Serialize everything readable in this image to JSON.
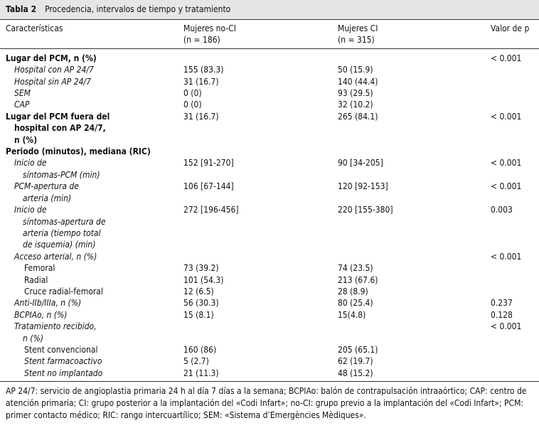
{
  "title": {
    "label": "Tabla 2",
    "text": "Procedencia, intervalos de tiempo y tratamiento"
  },
  "table": {
    "header": [
      [
        "Características"
      ],
      [
        "Mujeres no-CI",
        "(n = 186)"
      ],
      [
        "Mujeres CI",
        "(n = 315)"
      ],
      [
        "Valor de p"
      ]
    ],
    "rows": [
      [
        [
          "Lugar del PCM, n (%)"
        ],
        "",
        "",
        "< 0.001"
      ],
      [
        [
          "Hospital con AP 24/7"
        ],
        "155 (83.3)",
        "50 (15.9)",
        ""
      ],
      [
        [
          "Hospital sin AP 24/7"
        ],
        "31 (16.7)",
        "140 (44.4)",
        ""
      ],
      [
        [
          "SEM"
        ],
        "0 (0)",
        "93 (29.5)",
        ""
      ],
      [
        [
          "CAP"
        ],
        "0 (0)",
        "32 (10.2)",
        ""
      ],
      [
        [
          "Lugar del PCM fuera del",
          "hospital con AP 24/7,",
          "n (%)"
        ],
        "31 (16.7)",
        "265 (84.1)",
        "< 0.001"
      ],
      [
        [
          "Periodo (minutos), mediana (RIC)"
        ],
        "",
        "",
        ""
      ],
      [
        [
          "Inicio de",
          "síntomas-PCM (min)"
        ],
        "152 [91-270]",
        "90 [34-205]",
        "< 0.001"
      ],
      [
        [
          "PCM-apertura de",
          "arteria (min)"
        ],
        "106 [67-144]",
        "120 [92-153]",
        "< 0.001"
      ],
      [
        [
          "Inicio de",
          "síntomas-apertura de",
          "arteria (tiempo total",
          "de isquemia) (min)"
        ],
        "272 [196-456]",
        "220 [155-380]",
        "0.003"
      ],
      [
        [
          "Acceso arterial, n (%)"
        ],
        "",
        "",
        "< 0.001"
      ],
      [
        [
          "Femoral"
        ],
        "73 (39.2)",
        "74 (23.5)",
        ""
      ],
      [
        [
          "Radial"
        ],
        "101 (54.3)",
        "213 (67.6)",
        ""
      ],
      [
        [
          "Cruce radial-femoral"
        ],
        "12 (6.5)",
        "28 (8.9)",
        ""
      ],
      [
        [
          "Anti-IIb/IIIa, n (%)"
        ],
        "56 (30.3)",
        "80 (25.4)",
        "0.237"
      ],
      [
        [
          "BCPIAo, n (%)"
        ],
        "15 (8.1)",
        "15(4.8)",
        "0.128"
      ],
      [
        [
          "Tratamiento recibido,",
          "n (%)"
        ],
        "",
        "",
        "< 0.001"
      ],
      [
        [
          "Stent convencional"
        ],
        "160 (86)",
        "205 (65.1)",
        ""
      ],
      [
        [
          "Stent farmacoactivo"
        ],
        "5 (2.7)",
        "62 (19.7)",
        ""
      ],
      [
        [
          "Stent no implantado"
        ],
        "21 (11.3)",
        "48 (15.2)",
        ""
      ]
    ]
  },
  "footnote": "AP 24/7: servicio de angioplastia primaria 24 h al día 7 días a la semana; BCPIAo: balón de contrapulsación intraaórtico; CAP: centro de atención primaria; CI: grupo posterior a la implantación del «Codi Infart»; no-CI: grupo previo a la implantación del «Codi Infart»; PCM: primer contacto médico; RIC: rango intercuartílico; SEM: «Sistema d’Emergències Mèdiques»."
}
